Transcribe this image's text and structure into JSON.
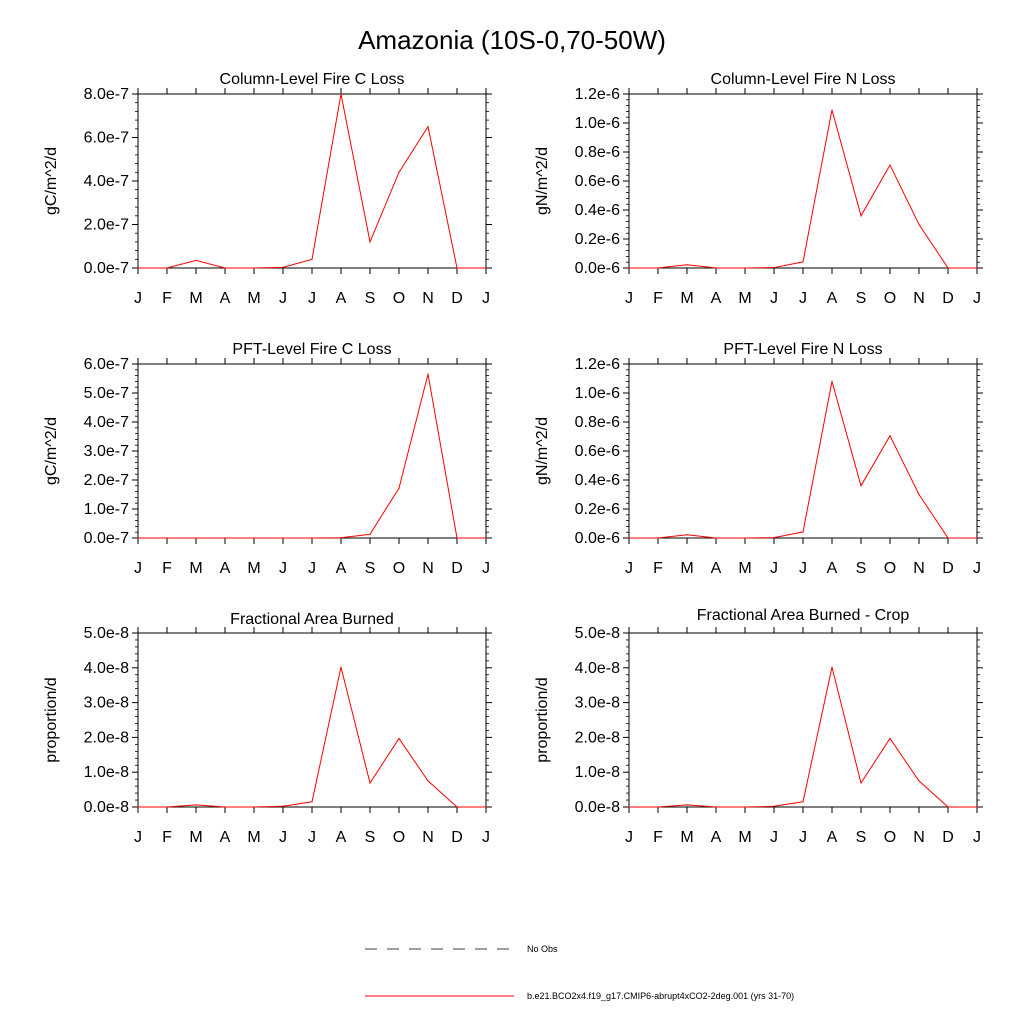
{
  "figure_title": "Amazonia (10S-0,70-50W)",
  "series_color": "#ff0000",
  "legend": {
    "obs_label": "No Obs",
    "model_label": "b.e21.BCO2x4.f19_g17.CMIP6-abrupt4xCO2-2deg.001 (yrs 31-70)"
  },
  "chart_data": [
    {
      "type": "line",
      "title": "Column-Level Fire C Loss",
      "ylabel": "gC/m^2/d",
      "categories": [
        "J",
        "F",
        "M",
        "A",
        "M",
        "J",
        "J",
        "A",
        "S",
        "O",
        "N",
        "D",
        "J"
      ],
      "ylim": [
        0,
        8e-07
      ],
      "yticks": [
        0,
        2e-07,
        4e-07,
        6e-07,
        8e-07
      ],
      "ytick_labels": [
        "0.0e-7",
        "2.0e-7",
        "4.0e-7",
        "6.0e-7",
        "8.0e-7"
      ],
      "series": [
        {
          "name": "b.e21.BCO2x4.f19_g17.CMIP6-abrupt4xCO2-2deg.001 (yrs 31-70)",
          "values": [
            0,
            0,
            3.5e-08,
            0,
            0,
            3e-09,
            4e-08,
            8e-07,
            1.2e-07,
            4.4e-07,
            6.5e-07,
            0,
            0
          ]
        }
      ]
    },
    {
      "type": "line",
      "title": "Column-Level Fire N Loss",
      "ylabel": "gN/m^2/d",
      "categories": [
        "J",
        "F",
        "M",
        "A",
        "M",
        "J",
        "J",
        "A",
        "S",
        "O",
        "N",
        "D",
        "J"
      ],
      "ylim": [
        0,
        1.2e-06
      ],
      "yticks": [
        0,
        2e-07,
        4e-07,
        6e-07,
        8e-07,
        1e-06,
        1.2e-06
      ],
      "ytick_labels": [
        "0.0e-6",
        "0.2e-6",
        "0.4e-6",
        "0.6e-6",
        "0.8e-6",
        "1.0e-6",
        "1.2e-6"
      ],
      "series": [
        {
          "name": "b.e21.BCO2x4.f19_g17.CMIP6-abrupt4xCO2-2deg.001 (yrs 31-70)",
          "values": [
            0,
            0,
            2.2e-08,
            0,
            0,
            3e-09,
            4.2e-08,
            1.09e-06,
            3.6e-07,
            7.1e-07,
            3e-07,
            0,
            0
          ]
        }
      ]
    },
    {
      "type": "line",
      "title": "PFT-Level Fire C Loss",
      "ylabel": "gC/m^2/d",
      "categories": [
        "J",
        "F",
        "M",
        "A",
        "M",
        "J",
        "J",
        "A",
        "S",
        "O",
        "N",
        "D",
        "J"
      ],
      "ylim": [
        0,
        6e-07
      ],
      "yticks": [
        0,
        1e-07,
        2e-07,
        3e-07,
        4e-07,
        5e-07,
        6e-07
      ],
      "ytick_labels": [
        "0.0e-7",
        "1.0e-7",
        "2.0e-7",
        "3.0e-7",
        "4.0e-7",
        "5.0e-7",
        "6.0e-7"
      ],
      "series": [
        {
          "name": "b.e21.BCO2x4.f19_g17.CMIP6-abrupt4xCO2-2deg.001 (yrs 31-70)",
          "values": [
            0,
            0,
            0,
            0,
            0,
            0,
            0,
            1e-09,
            1.3e-08,
            1.72e-07,
            5.65e-07,
            0,
            0
          ]
        }
      ]
    },
    {
      "type": "line",
      "title": "PFT-Level Fire N Loss",
      "ylabel": "gN/m^2/d",
      "categories": [
        "J",
        "F",
        "M",
        "A",
        "M",
        "J",
        "J",
        "A",
        "S",
        "O",
        "N",
        "D",
        "J"
      ],
      "ylim": [
        0,
        1.2e-06
      ],
      "yticks": [
        0,
        2e-07,
        4e-07,
        6e-07,
        8e-07,
        1e-06,
        1.2e-06
      ],
      "ytick_labels": [
        "0.0e-6",
        "0.2e-6",
        "0.4e-6",
        "0.6e-6",
        "0.8e-6",
        "1.0e-6",
        "1.2e-6"
      ],
      "series": [
        {
          "name": "b.e21.BCO2x4.f19_g17.CMIP6-abrupt4xCO2-2deg.001 (yrs 31-70)",
          "values": [
            0,
            0,
            2.2e-08,
            0,
            0,
            3e-09,
            4.2e-08,
            1.08e-06,
            3.6e-07,
            7.05e-07,
            3e-07,
            0,
            0
          ]
        }
      ]
    },
    {
      "type": "line",
      "title": "Fractional Area Burned",
      "ylabel": "proportion/d",
      "categories": [
        "J",
        "F",
        "M",
        "A",
        "M",
        "J",
        "J",
        "A",
        "S",
        "O",
        "N",
        "D",
        "J"
      ],
      "ylim": [
        0,
        5e-08
      ],
      "yticks": [
        0,
        1e-08,
        2e-08,
        3e-08,
        4e-08,
        5e-08
      ],
      "ytick_labels": [
        "0.0e-8",
        "1.0e-8",
        "2.0e-8",
        "3.0e-8",
        "4.0e-8",
        "5.0e-8"
      ],
      "series": [
        {
          "name": "b.e21.BCO2x4.f19_g17.CMIP6-abrupt4xCO2-2deg.001 (yrs 31-70)",
          "values": [
            0,
            0,
            6e-10,
            0,
            0,
            2e-10,
            1.5e-09,
            4.02e-08,
            6.9e-09,
            1.97e-08,
            7.5e-09,
            0,
            0
          ]
        }
      ]
    },
    {
      "type": "line",
      "title": "Fractional Area Burned - Crop",
      "ylabel": "proportion/d",
      "categories": [
        "J",
        "F",
        "M",
        "A",
        "M",
        "J",
        "J",
        "A",
        "S",
        "O",
        "N",
        "D",
        "J"
      ],
      "ylim": [
        0,
        5e-08
      ],
      "yticks": [
        0,
        1e-08,
        2e-08,
        3e-08,
        4e-08,
        5e-08
      ],
      "ytick_labels": [
        "0.0e-8",
        "1.0e-8",
        "2.0e-8",
        "3.0e-8",
        "4.0e-8",
        "5.0e-8"
      ],
      "series": [
        {
          "name": "b.e21.BCO2x4.f19_g17.CMIP6-abrupt4xCO2-2deg.001 (yrs 31-70)",
          "values": [
            0,
            0,
            6e-10,
            0,
            0,
            2e-10,
            1.5e-09,
            4.02e-08,
            6.9e-09,
            1.97e-08,
            7.5e-09,
            0,
            0
          ]
        }
      ]
    }
  ]
}
